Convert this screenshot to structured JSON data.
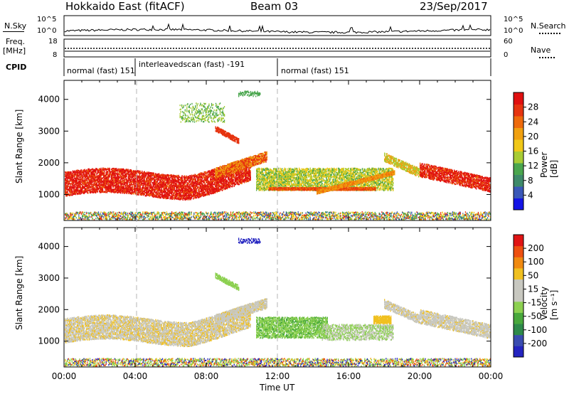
{
  "header": {
    "radar": "Hokkaido East (fitACF)",
    "beam": "Beam 03",
    "date": "23/Sep/2017"
  },
  "strip": {
    "nsky_label": "N.Sky",
    "nsky_ticks": [
      "10^5",
      "10^0"
    ],
    "nsearch_label": "N.Search",
    "nsearch_ticks": [
      "10^5",
      "10^0"
    ],
    "freq_label_1": "Freq.",
    "freq_label_2": "[MHz]",
    "freq_ticks": [
      "18",
      "8"
    ],
    "nave_label": "Nave",
    "nave_ticks": [
      "60",
      "0"
    ],
    "cpid_label": "CPID"
  },
  "modes": [
    {
      "label": "normal (fast) 151",
      "start_h": 0,
      "end_h": 4.1
    },
    {
      "label": "interleavedscan (fast) -191",
      "start_h": 4.1,
      "end_h": 12.0
    },
    {
      "label": "normal (fast) 151",
      "start_h": 12.0,
      "end_h": 24
    }
  ],
  "chart_data": [
    {
      "type": "heatmap",
      "name": "power",
      "ylabel": "Slant Range [km]",
      "ylim": [
        180,
        4600
      ],
      "yticks": [
        1000,
        2000,
        3000,
        4000
      ],
      "xlabel": "Time UT",
      "xlim": [
        0,
        24
      ],
      "xticks": [
        "00:00",
        "04:00",
        "08:00",
        "12:00",
        "16:00",
        "20:00",
        "00:00"
      ],
      "colorbar": {
        "label": "Power [dB]",
        "ticks": [
          "4",
          "8",
          "12",
          "16",
          "20",
          "24",
          "28"
        ],
        "colors": [
          "#1414e6",
          "#3a58b8",
          "#3e8a6a",
          "#4aa64e",
          "#a8cc34",
          "#f0c818",
          "#f0a010",
          "#ee6a0c",
          "#e63410",
          "#e01010"
        ]
      }
    },
    {
      "type": "heatmap",
      "name": "velocity",
      "ylabel": "Slant Range [km]",
      "ylim": [
        180,
        4600
      ],
      "yticks": [
        1000,
        2000,
        3000,
        4000
      ],
      "xlabel": "Time UT",
      "xlim": [
        0,
        24
      ],
      "xticks": [
        "00:00",
        "04:00",
        "08:00",
        "12:00",
        "16:00",
        "20:00",
        "00:00"
      ],
      "colorbar": {
        "label": "Velocity [m s⁻¹]",
        "ticks": [
          "200",
          "100",
          "50",
          "15",
          "-15",
          "-50",
          "-100",
          "-200"
        ],
        "colors": [
          "#2424c0",
          "#3a4cb0",
          "#2e8a4a",
          "#48a83c",
          "#8cd050",
          "#c8c8c0",
          "#c8c8c0",
          "#f0c020",
          "#f08a10",
          "#ee5010",
          "#e01414"
        ]
      }
    }
  ],
  "x_axis_title": "Time UT",
  "colors": {
    "ground": "#c8c8c0",
    "modeline": "#b4b4b4"
  }
}
